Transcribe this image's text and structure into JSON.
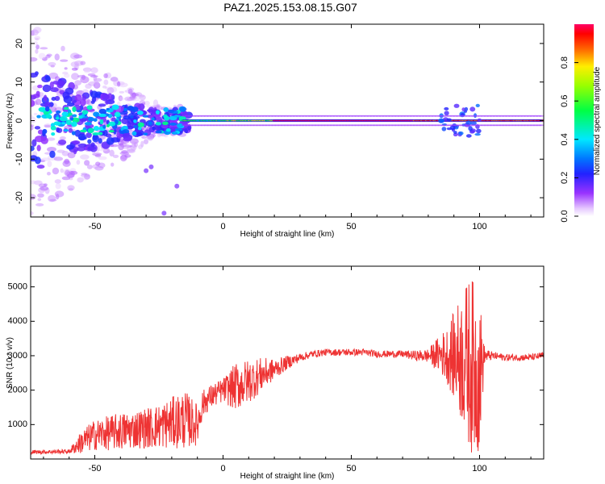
{
  "title": "PAZ1.2025.153.08.15.G07",
  "chart_data": [
    {
      "type": "heatmap",
      "xlabel": "Height of straight line (km)",
      "ylabel": "Frequency (Hz)",
      "xlim": [
        -75,
        125
      ],
      "ylim": [
        -25,
        25
      ],
      "xticks": [
        -50,
        0,
        50,
        100
      ],
      "xtick_labels": [
        "-50",
        "0",
        "50",
        "100"
      ],
      "yticks": [
        -20,
        -10,
        0,
        10,
        20
      ],
      "ytick_labels": [
        "-20",
        "-10",
        "0",
        "10",
        "20"
      ],
      "colorbar": {
        "label": "Normalized spectral amplitude",
        "range": [
          0,
          1
        ],
        "ticks": [
          0.0,
          0.2,
          0.4,
          0.6,
          0.8
        ],
        "tick_labels": [
          "0.0",
          "0.2",
          "0.4",
          "0.6",
          "0.8"
        ],
        "colormap": "rainbow (white-magenta-blue-cyan-green-yellow-red)"
      },
      "description_values": {
        "ridge_frequency_hz": 0,
        "ridge_clean_from_km": -15,
        "ridge_peak_from_km": 20,
        "ridge_peak_to_km": 75,
        "scatter_region_km": [
          -75,
          -15
        ],
        "scatter_frequency_spread_hz": [
          -25,
          25
        ]
      },
      "grid": false
    },
    {
      "type": "line",
      "xlabel": "Height of straight line (km)",
      "ylabel": "SNR (10 * v/v)",
      "xlim": [
        -75,
        125
      ],
      "ylim": [
        0,
        5600
      ],
      "xticks": [
        -50,
        0,
        50,
        100
      ],
      "xtick_labels": [
        "-50",
        "0",
        "50",
        "100"
      ],
      "yticks": [
        1000,
        2000,
        3000,
        4000,
        5000
      ],
      "ytick_labels": [
        "1000",
        "2000",
        "3000",
        "4000",
        "5000"
      ],
      "grid": false,
      "series": [
        {
          "color": "#ee3333",
          "x": [
            -75,
            -60,
            -55,
            -50,
            -45,
            -40,
            -35,
            -30,
            -25,
            -20,
            -15,
            -10,
            -8,
            -5,
            0,
            5,
            10,
            15,
            20,
            25,
            30,
            35,
            40,
            45,
            50,
            55,
            60,
            65,
            70,
            75,
            80,
            85,
            88,
            90,
            92,
            94,
            96,
            98,
            100,
            102,
            105,
            110,
            115,
            120,
            125
          ],
          "y": [
            200,
            220,
            500,
            700,
            750,
            800,
            850,
            900,
            950,
            1050,
            1150,
            1000,
            1600,
            1800,
            2000,
            2100,
            2250,
            2450,
            2600,
            2800,
            2950,
            3050,
            3100,
            3100,
            3100,
            3100,
            3050,
            3050,
            3050,
            3000,
            3000,
            3050,
            3000,
            3000,
            2950,
            2900,
            2800,
            2600,
            2500,
            3000,
            3000,
            2950,
            2950,
            2950,
            3000
          ],
          "noise_amplitude": [
            60,
            60,
            350,
            450,
            500,
            550,
            550,
            600,
            650,
            750,
            850,
            600,
            400,
            350,
            350,
            700,
            650,
            500,
            300,
            200,
            120,
            100,
            100,
            100,
            100,
            100,
            100,
            100,
            100,
            150,
            200,
            600,
            900,
            1300,
            1700,
            2100,
            2500,
            2600,
            2300,
            200,
            120,
            100,
            100,
            100,
            100
          ]
        }
      ]
    }
  ]
}
